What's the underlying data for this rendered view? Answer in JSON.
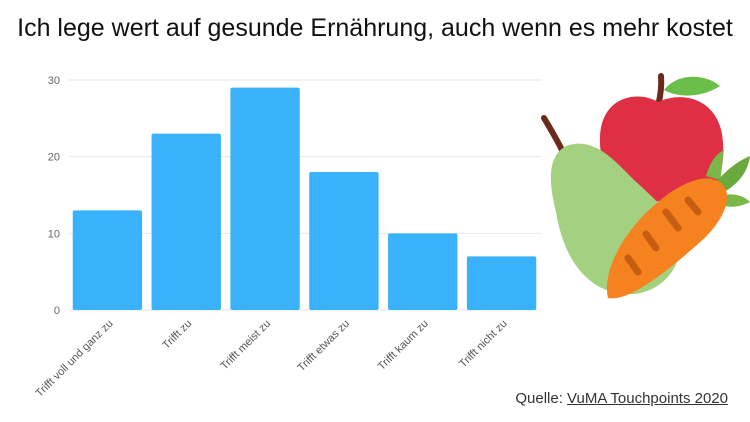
{
  "title": "Ich lege wert auf gesunde Ernährung, auch wenn es mehr kostet",
  "source": {
    "prefix": "Quelle:",
    "link": "VuMA Touchpoints 2020"
  },
  "illustration": {
    "icon": "fruit-vegetable-icon",
    "items": [
      "apple",
      "pear",
      "carrot"
    ]
  },
  "colors": {
    "bar": "#3ab2fb",
    "grid": "#e6e6e6"
  },
  "chart_data": {
    "type": "bar",
    "categories": [
      "Trifft voll und ganz zu",
      "Trifft zu",
      "Trifft meist zu",
      "Trifft etwas zu",
      "Trifft kaum zu",
      "Trifft nicht zu"
    ],
    "values": [
      13,
      23,
      29,
      18,
      10,
      7
    ],
    "ylim": [
      0,
      30
    ],
    "yticks": [
      0,
      10,
      20,
      30
    ],
    "grid": true,
    "legend": "none"
  }
}
